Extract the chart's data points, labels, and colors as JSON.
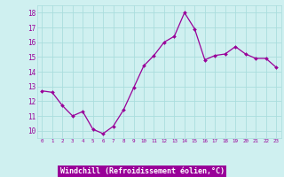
{
  "x": [
    0,
    1,
    2,
    3,
    4,
    5,
    6,
    7,
    8,
    9,
    10,
    11,
    12,
    13,
    14,
    15,
    16,
    17,
    18,
    19,
    20,
    21,
    22,
    23
  ],
  "y": [
    12.7,
    12.6,
    11.7,
    11.0,
    11.3,
    10.1,
    9.8,
    10.3,
    11.4,
    12.9,
    14.4,
    15.1,
    16.0,
    16.4,
    18.0,
    16.9,
    14.8,
    15.1,
    15.2,
    15.7,
    15.2,
    14.9,
    14.9,
    14.3
  ],
  "line_color": "#990099",
  "marker": "D",
  "marker_size": 2.0,
  "bg_color": "#cff0f0",
  "grid_color": "#aadddd",
  "tick_color": "#990099",
  "xlabel": "Windchill (Refroidissement éolien,°C)",
  "xlabel_bg": "#990099",
  "xlabel_fg": "#ffffff",
  "ylabel_ticks": [
    10,
    11,
    12,
    13,
    14,
    15,
    16,
    17,
    18
  ],
  "xlim": [
    -0.5,
    23.5
  ],
  "ylim": [
    9.5,
    18.5
  ],
  "xtick_labels": [
    "0",
    "1",
    "2",
    "3",
    "4",
    "5",
    "6",
    "7",
    "8",
    "9",
    "10",
    "11",
    "12",
    "13",
    "14",
    "15",
    "16",
    "17",
    "18",
    "19",
    "20",
    "21",
    "22",
    "23"
  ]
}
